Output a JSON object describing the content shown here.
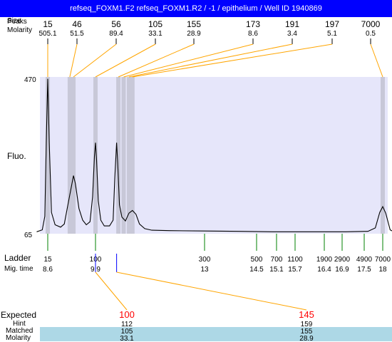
{
  "window": {
    "title": "refseq_FOXM1.F2  refseq_FOXM1.R2 / -1 / epithelium / Well ID 1940869"
  },
  "labels": {
    "peaks_size_header": "Peaks",
    "size_header": "Size",
    "molarity_header": "Molarity",
    "fluo": "Fluo.",
    "ladder": "Ladder",
    "mig_time": "Mig. time",
    "expected": "Expected",
    "hint": "Hint",
    "matched": "Matched",
    "molarity_bottom": "Molarity"
  },
  "colors": {
    "title_bg": "#0000ff",
    "plot_bg": "#e6e6fa",
    "peak_band": "#c8c8d8",
    "callout_line": "#ffa500",
    "ladder_tick": "#008000",
    "marker_line": "#0000ff",
    "expected_text": "#ff0000",
    "matched_band": "#add8e6"
  },
  "chart_data": {
    "type": "line",
    "title": "refseq_FOXM1.F2  refseq_FOXM1.R2 / -1 / epithelium / Well ID 1940869",
    "ylabel": "Fluo.",
    "ylim": [
      65,
      470
    ],
    "y_ticks": [
      "470",
      "65"
    ],
    "peaks": [
      {
        "size": "15",
        "molarity": "505.1",
        "time": 8.6
      },
      {
        "size": "46",
        "molarity": "51.5",
        "time": 9.2
      },
      {
        "size": "56",
        "molarity": "89.4",
        "time": 9.3
      },
      {
        "size": "105",
        "molarity": "33.1",
        "time": 9.9
      },
      {
        "size": "155",
        "molarity": "28.9",
        "time": 10.55
      },
      {
        "size": "173",
        "molarity": "8.6",
        "time": 10.7
      },
      {
        "size": "191",
        "molarity": "3.4",
        "time": 10.85
      },
      {
        "size": "197",
        "molarity": "5.1",
        "time": 10.95
      },
      {
        "size": "7000",
        "molarity": "0.5",
        "time": 18
      }
    ],
    "ladder": [
      {
        "size": "15",
        "time": "8.6"
      },
      {
        "size": "100",
        "time": "9.9"
      },
      {
        "size": "300",
        "time": "13"
      },
      {
        "size": "500",
        "time": "14.5"
      },
      {
        "size": "700",
        "time": "15.1"
      },
      {
        "size": "1100",
        "time": "15.7"
      },
      {
        "size": "1900",
        "time": "16.4"
      },
      {
        "size": "2900",
        "time": "16.9"
      },
      {
        "size": "4900",
        "time": "17.5"
      },
      {
        "size": "7000",
        "time": "18"
      }
    ],
    "trace": [
      [
        8.3,
        70
      ],
      [
        8.45,
        75
      ],
      [
        8.52,
        110
      ],
      [
        8.56,
        300
      ],
      [
        8.6,
        465
      ],
      [
        8.64,
        300
      ],
      [
        8.7,
        120
      ],
      [
        8.8,
        88
      ],
      [
        8.95,
        82
      ],
      [
        9.05,
        90
      ],
      [
        9.15,
        140
      ],
      [
        9.25,
        190
      ],
      [
        9.3,
        215
      ],
      [
        9.35,
        195
      ],
      [
        9.45,
        130
      ],
      [
        9.55,
        100
      ],
      [
        9.65,
        88
      ],
      [
        9.75,
        96
      ],
      [
        9.82,
        160
      ],
      [
        9.87,
        265
      ],
      [
        9.9,
        300
      ],
      [
        9.93,
        255
      ],
      [
        9.98,
        150
      ],
      [
        10.05,
        100
      ],
      [
        10.15,
        85
      ],
      [
        10.3,
        85
      ],
      [
        10.4,
        100
      ],
      [
        10.45,
        210
      ],
      [
        10.5,
        300
      ],
      [
        10.53,
        250
      ],
      [
        10.58,
        140
      ],
      [
        10.65,
        108
      ],
      [
        10.7,
        103
      ],
      [
        10.75,
        98
      ],
      [
        10.85,
        118
      ],
      [
        10.95,
        125
      ],
      [
        11.05,
        115
      ],
      [
        11.15,
        90
      ],
      [
        11.3,
        78
      ],
      [
        11.5,
        74
      ],
      [
        12.0,
        73
      ],
      [
        13.0,
        72
      ],
      [
        14.0,
        71
      ],
      [
        15.0,
        70
      ],
      [
        16.0,
        70
      ],
      [
        17.0,
        70
      ],
      [
        17.6,
        71
      ],
      [
        17.8,
        80
      ],
      [
        17.92,
        120
      ],
      [
        18.0,
        135
      ],
      [
        18.08,
        118
      ],
      [
        18.2,
        75
      ],
      [
        18.3,
        70
      ]
    ],
    "expected": [
      {
        "expected": "100",
        "hint": "112",
        "matched": "105",
        "molarity": "33.1"
      },
      {
        "expected": "145",
        "hint": "159",
        "matched": "155",
        "molarity": "28.9"
      }
    ]
  }
}
